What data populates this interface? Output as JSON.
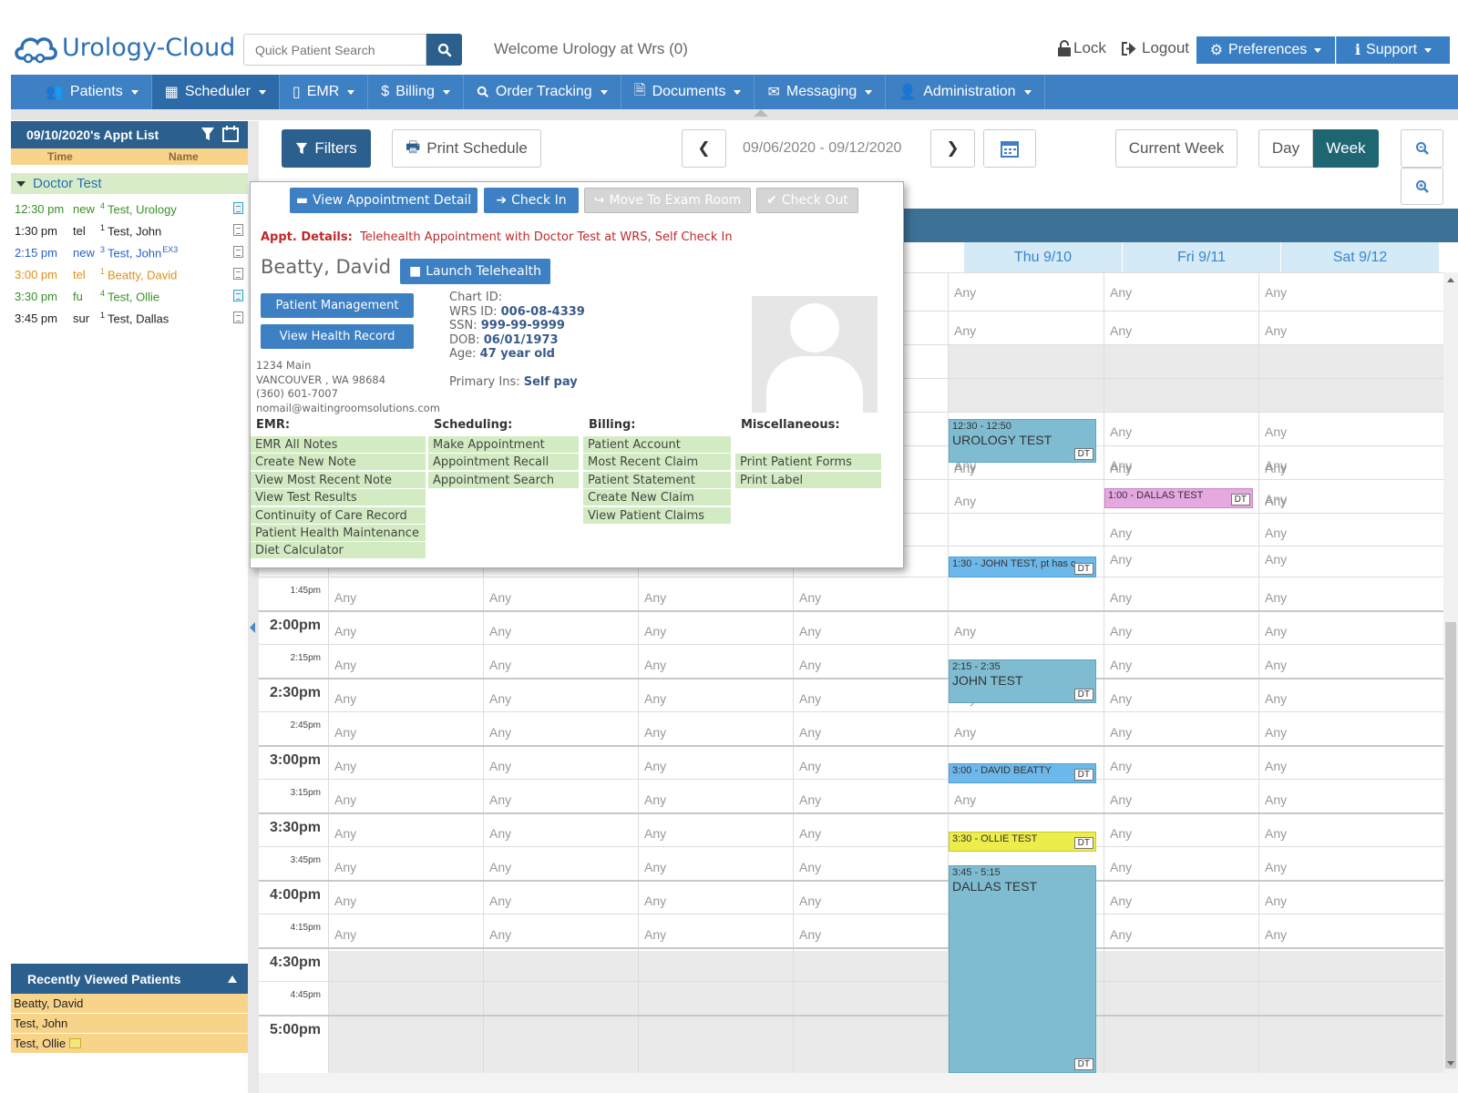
{
  "brand": {
    "logo_text": "Urology-Cloud"
  },
  "header": {
    "search_placeholder": "Quick Patient Search",
    "welcome": "Welcome Urology at Wrs (0)",
    "lock": "Lock",
    "logout": "Logout",
    "preferences": "Preferences",
    "support": "Support"
  },
  "nav": {
    "patients": "Patients",
    "scheduler": "Scheduler",
    "emr": "EMR",
    "billing": "Billing",
    "order_tracking": "Order Tracking",
    "documents": "Documents",
    "messaging": "Messaging",
    "administration": "Administration"
  },
  "appt_list": {
    "title": "09/10/2020's Appt List",
    "col_time": "Time",
    "col_name": "Name",
    "doctor": "Doctor Test",
    "rows": [
      {
        "time": "12:30 pm",
        "type": "new",
        "sup": "4",
        "name": "Test, Urology",
        "color": "#3a8f2a"
      },
      {
        "time": "1:30 pm",
        "type": "tel",
        "sup": "1",
        "name": "Test, John",
        "color": "#222222"
      },
      {
        "time": "2:15 pm",
        "type": "new",
        "sup": "3",
        "name": "Test, John",
        "suffix": "EX3",
        "color": "#2a5fc9"
      },
      {
        "time": "3:00 pm",
        "type": "tel",
        "sup": "1",
        "name": "Beatty, David",
        "color": "#e0901a"
      },
      {
        "time": "3:30 pm",
        "type": "fu",
        "sup": "4",
        "name": "Test, Ollie",
        "color": "#3a8f2a"
      },
      {
        "time": "3:45 pm",
        "type": "sur",
        "sup": "1",
        "name": "Test, Dallas",
        "color": "#222222"
      }
    ]
  },
  "recent": {
    "title": "Recently Viewed Patients",
    "items": [
      "Beatty, David",
      "Test, John",
      "Test, Ollie"
    ]
  },
  "toolbar": {
    "filters": "Filters",
    "print_schedule": "Print Schedule",
    "date_range": "09/06/2020 - 09/12/2020",
    "current_week": "Current Week",
    "day": "Day",
    "week": "Week",
    "active_view": "Week"
  },
  "calendar": {
    "days": [
      "Thu 9/10",
      "Fri 9/11",
      "Sat 9/12"
    ],
    "any_label": "Any",
    "times": [
      {
        "label": "1:45pm",
        "big": false
      },
      {
        "label": "2:00pm",
        "big": true
      },
      {
        "label": "2:15pm",
        "big": false
      },
      {
        "label": "2:30pm",
        "big": true
      },
      {
        "label": "2:45pm",
        "big": false
      },
      {
        "label": "3:00pm",
        "big": true
      },
      {
        "label": "3:15pm",
        "big": false
      },
      {
        "label": "3:30pm",
        "big": true
      },
      {
        "label": "3:45pm",
        "big": false
      },
      {
        "label": "4:00pm",
        "big": true
      },
      {
        "label": "4:15pm",
        "big": false
      },
      {
        "label": "4:30pm",
        "big": true
      },
      {
        "label": "4:45pm",
        "big": false
      },
      {
        "label": "5:00pm",
        "big": true
      }
    ],
    "appointments": [
      {
        "time": "12:30 - 12:50",
        "title": "UROLOGY TEST",
        "tag": "DT",
        "color": "teal"
      },
      {
        "time": "1:00 - DALLAS TEST",
        "title": "",
        "tag": "DT",
        "color": "pink"
      },
      {
        "time": "1:30 - JOHN TEST, pt has c",
        "title": "",
        "tag": "DT",
        "color": "blue"
      },
      {
        "time": "2:15 - 2:35",
        "title": "JOHN TEST",
        "tag": "DT",
        "color": "teal"
      },
      {
        "time": "3:00 - DAVID BEATTY",
        "title": "",
        "tag": "DT",
        "color": "blue"
      },
      {
        "time": "3:30 - OLLIE TEST",
        "title": "",
        "tag": "DT",
        "color": "yellow"
      },
      {
        "time": "3:45 - 5:15",
        "title": "DALLAS TEST",
        "tag": "DT",
        "color": "teal"
      }
    ]
  },
  "popup": {
    "view_detail": "View Appointment Detail",
    "check_in": "Check In",
    "move_exam": "Move To Exam Room",
    "check_out": "Check Out",
    "details_label": "Appt. Details:",
    "details_text": "Telehealth Appointment with Doctor Test at WRS, Self Check In",
    "patient_name": "Beatty, David",
    "launch_telehealth": "Launch Telehealth",
    "patient_management": "Patient Management",
    "view_health_record": "View Health Record",
    "address": [
      "1234 Main",
      "VANCOUVER , WA 98684",
      "(360) 601-7007",
      "nomail@waitingroomsolutions.com"
    ],
    "chart_id_label": "Chart ID:",
    "wrs_label": "WRS ID:",
    "wrs_id": "006-08-4339",
    "ssn_label": "SSN:",
    "ssn": "999-99-9999",
    "dob_label": "DOB:",
    "dob": "06/01/1973",
    "age_label": "Age:",
    "age": "47 year old",
    "ins_label": "Primary Ins:",
    "ins": "Self pay",
    "sections": {
      "emr": {
        "title": "EMR:",
        "items": [
          "EMR All Notes",
          "Create New Note",
          "View Most Recent Note",
          "View Test Results",
          "Continuity of Care Record",
          "Patient Health Maintenance",
          "Diet Calculator"
        ]
      },
      "scheduling": {
        "title": "Scheduling:",
        "items": [
          "Make Appointment",
          "Appointment Recall",
          "Appointment Search"
        ]
      },
      "billing": {
        "title": "Billing:",
        "items": [
          "Patient Account",
          "Most Recent Claim",
          "Patient Statement",
          "Create New Claim",
          "View Patient Claims"
        ]
      },
      "misc": {
        "title": "Miscellaneous:",
        "items": [
          "Print Patient Forms",
          "Print Label"
        ]
      }
    }
  },
  "colors": {
    "nav_blue": "#3d80c3",
    "header_dark": "#2b5f8d",
    "week_active": "#1f6673",
    "appt_teal": "#7fbcd1",
    "appt_blue": "#6db8ea",
    "appt_pink": "#e5a8e0",
    "appt_yellow": "#ecec4a",
    "recent_bg": "#f8d38a",
    "menu_green": "#d3ebc2"
  }
}
